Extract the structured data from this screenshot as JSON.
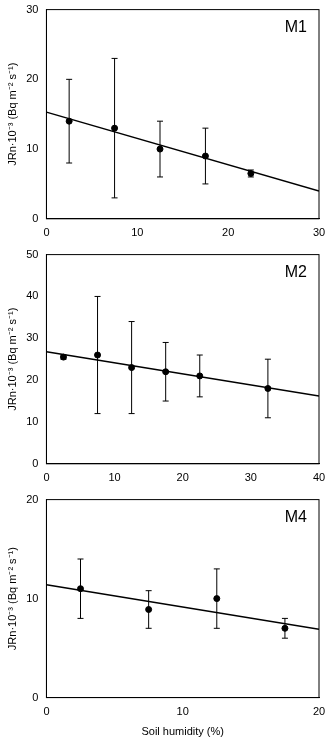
{
  "chart_data": [
    {
      "type": "scatter",
      "annotation": "M1",
      "y_label": "JRn·10⁻³ (Bq m⁻² s⁻¹)",
      "x": [
        2.5,
        7.5,
        12.5,
        17.5,
        22.5
      ],
      "values": [
        14,
        13,
        10,
        9,
        6.5
      ],
      "error": [
        6,
        10,
        4,
        4,
        0.5
      ],
      "fit": {
        "x": [
          0,
          30
        ],
        "values": [
          15.3,
          4
        ]
      },
      "xlim": [
        0,
        30
      ],
      "xticks": [
        0,
        10,
        20,
        30
      ],
      "ylim": [
        0,
        30
      ],
      "yticks": [
        0,
        10,
        20,
        30
      ],
      "color": "#000000",
      "grid": false
    },
    {
      "type": "scatter",
      "annotation": "M2",
      "y_label": "JRn·10⁻³ (Bq m⁻² s⁻¹)",
      "x": [
        2.5,
        7.5,
        12.5,
        17.5,
        22.5,
        32.5
      ],
      "values": [
        25.5,
        26,
        23,
        22,
        21,
        18
      ],
      "error": [
        0.5,
        14,
        11,
        7,
        5,
        7
      ],
      "fit": {
        "x": [
          0,
          40
        ],
        "values": [
          26.8,
          16.2
        ]
      },
      "xlim": [
        0,
        40
      ],
      "xticks": [
        0,
        10,
        20,
        30,
        40
      ],
      "ylim": [
        0,
        50
      ],
      "yticks": [
        0,
        10,
        20,
        30,
        40,
        50
      ],
      "color": "#000000",
      "grid": false
    },
    {
      "type": "scatter",
      "annotation": "M4",
      "y_label": "JRn·10⁻³ (Bq m⁻² s⁻¹)",
      "x_label": "Soil humidity (%)",
      "x": [
        2.5,
        7.5,
        12.5,
        17.5
      ],
      "values": [
        11,
        8.9,
        10,
        7
      ],
      "error": [
        3,
        1.9,
        3,
        1
      ],
      "fit": {
        "x": [
          0,
          20
        ],
        "values": [
          11.4,
          6.9
        ]
      },
      "xlim": [
        0,
        20
      ],
      "xticks": [
        0,
        10,
        20
      ],
      "ylim": [
        0,
        20
      ],
      "yticks": [
        0,
        10,
        20
      ],
      "color": "#000000",
      "grid": false
    }
  ]
}
